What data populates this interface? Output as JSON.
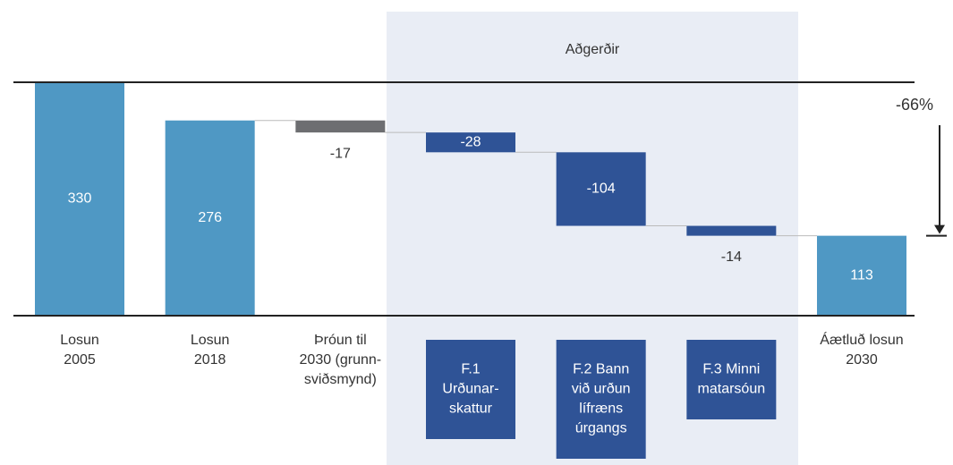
{
  "chart_data": {
    "type": "waterfall",
    "section_title": "Aðgerðir",
    "categories": [
      [
        "Losun",
        "2005"
      ],
      [
        "Losun",
        "2018"
      ],
      [
        "Þróun til",
        "2030 (grunn-",
        "sviðsmynd)"
      ],
      null,
      null,
      null,
      [
        "Áætluð losun",
        "2030"
      ]
    ],
    "values": [
      330,
      276,
      -17,
      -28,
      -104,
      -14,
      113
    ],
    "colors": [
      "#4f98c4",
      "#4f98c4",
      "#6d6e71",
      "#2f5396",
      "#2f5396",
      "#2f5396",
      "#4f98c4"
    ],
    "actions": [
      [
        "F.1",
        "Urðunar-",
        "skattur"
      ],
      [
        "F.2 Bann",
        "við urðun",
        "lífræns",
        "úrgangs"
      ],
      [
        "F.3 Minni",
        "matarsóun"
      ]
    ],
    "annotation": "-66%",
    "ylim": [
      0,
      330
    ]
  }
}
